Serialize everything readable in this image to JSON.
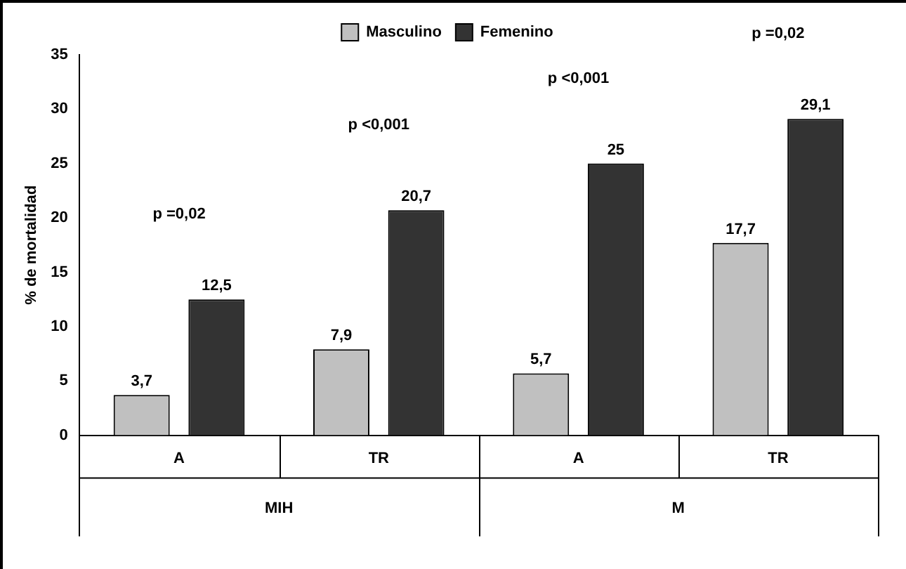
{
  "chart_data": {
    "type": "bar",
    "ylabel": "% de mortalidad",
    "categories": [
      "A",
      "TR",
      "A",
      "TR"
    ],
    "series": [
      {
        "name": "Masculino",
        "color": "#c0c0c0",
        "values": [
          3.7,
          7.9,
          5.7,
          17.7
        ],
        "value_labels": [
          "3,7",
          "7,9",
          "5,7",
          "17,7"
        ]
      },
      {
        "name": "Femenino",
        "color": "#333333",
        "values": [
          12.5,
          20.7,
          25,
          29.1
        ],
        "value_labels": [
          "12,5",
          "20,7",
          "25",
          "29,1"
        ]
      }
    ],
    "ylim": [
      0,
      35
    ],
    "yticks": [
      0,
      5,
      10,
      15,
      20,
      25,
      30,
      35
    ],
    "grid": false,
    "legend": "top",
    "annotations": [
      "p =0,02",
      "p <0,001",
      "p <0,001",
      "p =0,02",
      "MIH",
      "M"
    ]
  }
}
